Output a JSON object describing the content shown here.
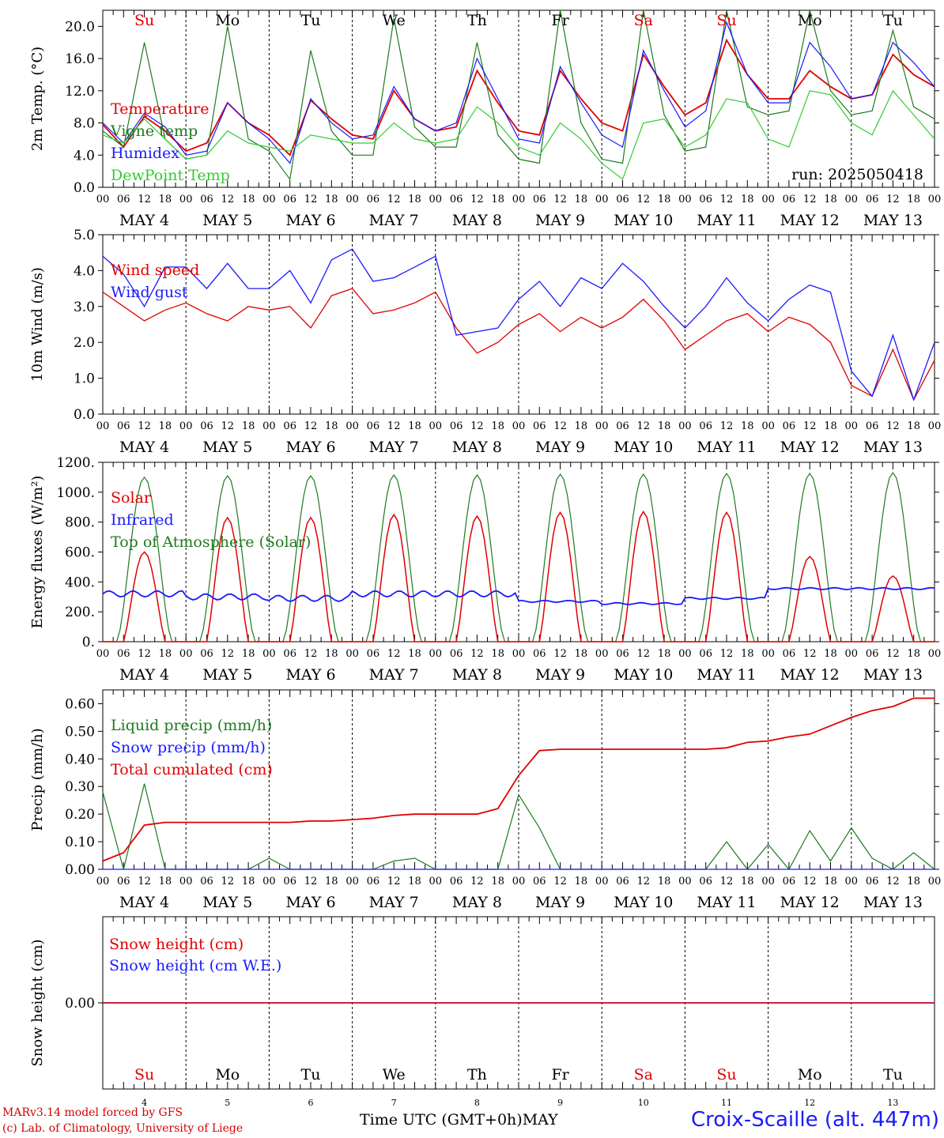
{
  "run_label": "run: 2025050418",
  "x_axis": {
    "hour_ticks": [
      "00",
      "06",
      "12",
      "18"
    ],
    "days": [
      "MAY  4",
      "MAY  5",
      "MAY  6",
      "MAY  7",
      "MAY  8",
      "MAY  9",
      "MAY 10",
      "MAY 11",
      "MAY 12",
      "MAY 13"
    ],
    "weekdays": [
      "Su",
      "Mo",
      "Tu",
      "We",
      "Th",
      "Fr",
      "Sa",
      "Su",
      "Mo",
      "Tu"
    ],
    "weekday_colors": [
      "#e00000",
      "#000000",
      "#000000",
      "#000000",
      "#000000",
      "#000000",
      "#e00000",
      "#e00000",
      "#000000",
      "#000000"
    ],
    "day_numbers": [
      "4",
      "5",
      "6",
      "7",
      "8",
      "9",
      "10",
      "11",
      "12",
      "13"
    ]
  },
  "footer": {
    "model_line": "MARv3.14 model forced by GFS",
    "credit_line": "(c) Lab. of Climatology, University of Liege",
    "axis_title": "Time UTC (GMT+0h)MAY",
    "station": "Croix-Scaille (alt. 447m)"
  },
  "chart_data": [
    {
      "type": "line",
      "ylabel": "2m Temp. (°C)",
      "ylim": [
        0,
        22
      ],
      "yticks": [
        0,
        4,
        8,
        12,
        16,
        20
      ],
      "ytick_labels": [
        "0.0",
        "4.0",
        "8.0",
        "12.0",
        "16.0",
        "20.0"
      ],
      "x_hours": [
        0,
        6,
        12,
        18,
        24,
        30,
        36,
        42,
        48,
        54,
        60,
        66,
        72,
        78,
        84,
        90,
        96,
        102,
        108,
        114,
        120,
        126,
        132,
        138,
        144,
        150,
        156,
        162,
        168,
        174,
        180,
        186,
        192,
        198,
        204,
        210,
        216,
        222,
        228,
        234,
        240
      ],
      "series": [
        {
          "name": "Temperature",
          "color": "#e00000",
          "values": [
            7.8,
            5.0,
            8.8,
            7.0,
            4.5,
            5.5,
            10.5,
            8.0,
            6.5,
            4.0,
            10.8,
            8.5,
            6.5,
            6.0,
            12.0,
            8.5,
            7.0,
            7.5,
            14.5,
            10.5,
            7.0,
            6.5,
            14.5,
            11.0,
            8.0,
            7.0,
            16.5,
            12.5,
            9.0,
            10.5,
            18.3,
            14.0,
            11.0,
            11.0,
            14.5,
            12.5,
            11.0,
            11.5,
            16.5,
            14.0,
            12.5
          ]
        },
        {
          "name": "Vigne temp",
          "color": "#1f7a1f",
          "values": [
            7.0,
            5.0,
            18.0,
            6.0,
            3.5,
            4.0,
            20.0,
            6.0,
            4.5,
            1.0,
            17.0,
            7.0,
            4.0,
            4.0,
            21.0,
            7.5,
            5.0,
            5.0,
            18.0,
            6.5,
            3.5,
            3.0,
            22.0,
            8.0,
            3.5,
            3.0,
            22.0,
            9.0,
            4.5,
            5.0,
            22.0,
            10.0,
            9.0,
            9.5,
            22.0,
            12.0,
            9.0,
            9.5,
            19.5,
            10.0,
            8.5
          ]
        },
        {
          "name": "Humidex",
          "color": "#1a1aff",
          "values": [
            8.0,
            5.5,
            9.2,
            7.5,
            4.0,
            4.5,
            10.5,
            8.0,
            6.0,
            3.0,
            11.0,
            8.0,
            6.0,
            6.5,
            12.5,
            8.5,
            7.0,
            8.0,
            16.0,
            11.0,
            6.0,
            5.5,
            15.0,
            10.5,
            6.5,
            5.0,
            17.0,
            12.0,
            7.5,
            9.5,
            20.5,
            14.0,
            10.5,
            10.5,
            18.0,
            15.0,
            11.0,
            11.5,
            18.0,
            15.5,
            12.5
          ]
        },
        {
          "name": "DewPoint Temp",
          "color": "#33cc33",
          "values": [
            6.5,
            5.5,
            8.5,
            6.0,
            3.5,
            4.0,
            7.0,
            5.5,
            5.0,
            4.5,
            6.5,
            6.0,
            5.5,
            5.5,
            8.0,
            6.0,
            5.5,
            6.0,
            10.0,
            8.0,
            5.0,
            4.0,
            8.0,
            6.0,
            3.0,
            1.0,
            8.0,
            8.5,
            5.0,
            6.5,
            11.0,
            10.5,
            6.0,
            5.0,
            12.0,
            11.5,
            8.0,
            6.5,
            12.0,
            9.0,
            6.0
          ]
        }
      ]
    },
    {
      "type": "line",
      "ylabel": "10m Wind (m/s)",
      "ylim": [
        0,
        5
      ],
      "yticks": [
        0,
        1,
        2,
        3,
        4,
        5
      ],
      "ytick_labels": [
        "0.0",
        "1.0",
        "2.0",
        "3.0",
        "4.0",
        "5.0"
      ],
      "x_hours": [
        0,
        6,
        12,
        18,
        24,
        30,
        36,
        42,
        48,
        54,
        60,
        66,
        72,
        78,
        84,
        90,
        96,
        102,
        108,
        114,
        120,
        126,
        132,
        138,
        144,
        150,
        156,
        162,
        168,
        174,
        180,
        186,
        192,
        198,
        204,
        210,
        216,
        222,
        228,
        234,
        240
      ],
      "series": [
        {
          "name": "Wind speed",
          "color": "#e00000",
          "values": [
            3.4,
            3.0,
            2.6,
            2.9,
            3.1,
            2.8,
            2.6,
            3.0,
            2.9,
            3.0,
            2.4,
            3.3,
            3.5,
            2.8,
            2.9,
            3.1,
            3.4,
            2.4,
            1.7,
            2.0,
            2.5,
            2.8,
            2.3,
            2.7,
            2.4,
            2.7,
            3.2,
            2.6,
            1.8,
            2.2,
            2.6,
            2.8,
            2.3,
            2.7,
            2.5,
            2.0,
            0.8,
            0.5,
            1.8,
            0.4,
            1.5
          ]
        },
        {
          "name": "Wind gust",
          "color": "#1a1aff",
          "values": [
            4.4,
            3.9,
            3.0,
            4.1,
            4.1,
            3.5,
            4.2,
            3.5,
            3.5,
            4.0,
            3.1,
            4.3,
            4.6,
            3.7,
            3.8,
            4.1,
            4.4,
            2.2,
            2.3,
            2.4,
            3.2,
            3.7,
            3.0,
            3.8,
            3.5,
            4.2,
            3.7,
            3.0,
            2.4,
            3.0,
            3.8,
            3.1,
            2.6,
            3.2,
            3.6,
            3.4,
            1.2,
            0.5,
            2.2,
            0.4,
            2.0
          ]
        }
      ]
    },
    {
      "type": "line",
      "ylabel": "Energy fluxes (W/m²)",
      "ylim": [
        0,
        1200
      ],
      "yticks": [
        0,
        200,
        400,
        600,
        800,
        1000,
        1200
      ],
      "ytick_labels": [
        "0.",
        "200.",
        "400.",
        "600.",
        "800.",
        "1000.",
        "1200."
      ],
      "series": [
        {
          "name": "Solar",
          "color": "#e00000",
          "day_peaks": [
            600,
            830,
            830,
            850,
            840,
            865,
            870,
            865,
            570,
            440
          ]
        },
        {
          "name": "Infrared",
          "color": "#1a1aff",
          "day_means": [
            320,
            300,
            290,
            320,
            320,
            270,
            255,
            290,
            355,
            355
          ]
        },
        {
          "name": "Top of Atmosphere (Solar)",
          "color": "#1f7a1f",
          "day_peaks": [
            1100,
            1110,
            1110,
            1115,
            1115,
            1120,
            1120,
            1125,
            1125,
            1130
          ]
        }
      ]
    },
    {
      "type": "line",
      "ylabel": "Precip (mm/h)",
      "ylim": [
        0,
        0.65
      ],
      "yticks": [
        0,
        0.1,
        0.2,
        0.3,
        0.4,
        0.5,
        0.6
      ],
      "ytick_labels": [
        "0.00",
        "0.10",
        "0.20",
        "0.30",
        "0.40",
        "0.50",
        "0.60"
      ],
      "x_hours": [
        0,
        6,
        12,
        18,
        24,
        30,
        36,
        42,
        48,
        54,
        60,
        66,
        72,
        78,
        84,
        90,
        96,
        102,
        108,
        114,
        120,
        126,
        132,
        138,
        144,
        150,
        156,
        162,
        168,
        174,
        180,
        186,
        192,
        198,
        204,
        210,
        216,
        222,
        228,
        234,
        240
      ],
      "series": [
        {
          "name": "Liquid precip (mm/h)",
          "color": "#1f7a1f",
          "values": [
            0.28,
            0.0,
            0.31,
            0.0,
            0.0,
            0.0,
            0.0,
            0.0,
            0.04,
            0.0,
            0.0,
            0.0,
            0.0,
            0.0,
            0.03,
            0.04,
            0.0,
            0.0,
            0.0,
            0.0,
            0.27,
            0.15,
            0.0,
            0.0,
            0.0,
            0.0,
            0.0,
            0.0,
            0.0,
            0.0,
            0.1,
            0.0,
            0.09,
            0.0,
            0.14,
            0.03,
            0.15,
            0.04,
            0.0,
            0.06,
            0.0
          ]
        },
        {
          "name": "Snow precip (mm/h)",
          "color": "#1a1aff",
          "values": [
            0,
            0,
            0,
            0,
            0,
            0,
            0,
            0,
            0,
            0,
            0,
            0,
            0,
            0,
            0,
            0,
            0,
            0,
            0,
            0,
            0,
            0,
            0,
            0,
            0,
            0,
            0,
            0,
            0,
            0,
            0,
            0,
            0,
            0,
            0,
            0,
            0,
            0,
            0,
            0,
            0
          ]
        },
        {
          "name": "Total cumulated (cm)",
          "color": "#e00000",
          "values": [
            0.03,
            0.06,
            0.16,
            0.17,
            0.17,
            0.17,
            0.17,
            0.17,
            0.17,
            0.17,
            0.175,
            0.175,
            0.18,
            0.185,
            0.195,
            0.2,
            0.2,
            0.2,
            0.2,
            0.22,
            0.34,
            0.43,
            0.435,
            0.435,
            0.435,
            0.435,
            0.435,
            0.435,
            0.435,
            0.435,
            0.44,
            0.46,
            0.465,
            0.48,
            0.49,
            0.52,
            0.55,
            0.575,
            0.59,
            0.62,
            0.62
          ]
        }
      ]
    },
    {
      "type": "line",
      "ylabel": "Snow height (cm)",
      "ytick_labels": [
        "0.00"
      ],
      "series": [
        {
          "name": "Snow height (cm)",
          "color": "#e00000",
          "values": [
            0,
            0
          ]
        },
        {
          "name": "Snow height (cm W.E.)",
          "color": "#1a1aff",
          "values": [
            0,
            0
          ]
        }
      ]
    }
  ]
}
